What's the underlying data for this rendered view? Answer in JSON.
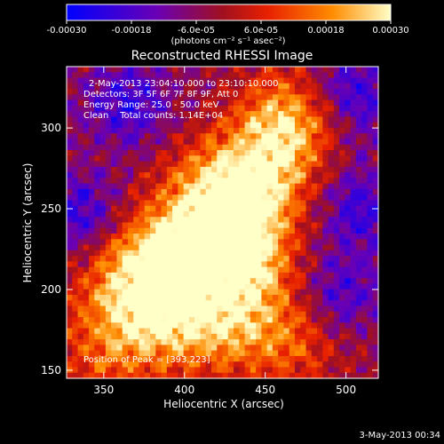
{
  "chart_data": {
    "type": "heatmap",
    "title": "Reconstructed RHESSI Image",
    "xlabel": "Heliocentric X (arcsec)",
    "ylabel": "Heliocentric Y (arcsec)",
    "xlim": [
      327,
      520
    ],
    "ylim": [
      145,
      338
    ],
    "x_ticks": [
      350,
      400,
      450,
      500
    ],
    "y_ticks": [
      150,
      200,
      250,
      300
    ],
    "colorbar": {
      "label": "(photons cm⁻² s⁻¹ asec⁻²)",
      "range": [
        -0.0003,
        0.0003
      ],
      "tick_labels": [
        "-0.00030",
        "-0.00018",
        "-6.0e-05",
        "6.0e-05",
        "0.00018",
        "0.00030"
      ],
      "colors": [
        "#0000ff",
        "#6a00b4",
        "#a01020",
        "#e82000",
        "#ff8c00",
        "#ffffc8"
      ]
    },
    "annotations": [
      "2-May-2013 23:04:10.000 to 23:10:10.000",
      "Detectors: 3F 5F 6F 7F 8F 9F, Att 0",
      "Energy Range: 25.0 - 50.0 keV",
      "Clean    Total counts: 1.14E+04"
    ],
    "peak_label": "Position of Peak = [393,223]",
    "peak": [
      393,
      223
    ],
    "hotspots": [
      {
        "x": 393,
        "y": 223,
        "intensity": 1.0
      },
      {
        "x": 437,
        "y": 218,
        "intensity": 0.95
      },
      {
        "x": 462,
        "y": 302,
        "intensity": 0.9
      },
      {
        "x": 418,
        "y": 262,
        "intensity": 0.75
      },
      {
        "x": 448,
        "y": 262,
        "intensity": 0.7
      },
      {
        "x": 385,
        "y": 182,
        "intensity": 0.7
      },
      {
        "x": 425,
        "y": 175,
        "intensity": 0.65
      },
      {
        "x": 360,
        "y": 205,
        "intensity": 0.55
      },
      {
        "x": 470,
        "y": 170,
        "intensity": 0.5
      },
      {
        "x": 350,
        "y": 160,
        "intensity": 0.45
      }
    ],
    "coldspots": [
      {
        "x": 335,
        "y": 245
      },
      {
        "x": 508,
        "y": 250
      },
      {
        "x": 505,
        "y": 320
      },
      {
        "x": 365,
        "y": 315
      },
      {
        "x": 495,
        "y": 195
      }
    ]
  },
  "footer_date": "3-May-2013 00:34"
}
